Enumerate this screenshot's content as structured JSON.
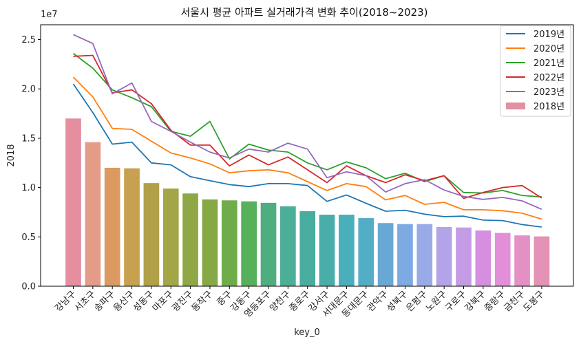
{
  "chart_data": {
    "type": "bar+line",
    "title": "서울시 평균 아파트 실거래가격 변화 추이(2018~2023)",
    "xlabel": "key_0",
    "ylabel": "2018",
    "y_multiplier_label": "1e7",
    "ylim": [
      0,
      2.65
    ],
    "yticks": [
      0.0,
      0.5,
      1.0,
      1.5,
      2.0,
      2.5
    ],
    "ytick_labels": [
      "0.0",
      "0.5",
      "1.0",
      "1.5",
      "2.0",
      "2.5"
    ],
    "grid": false,
    "legend_position": "top-right",
    "categories": [
      "강남구",
      "서초구",
      "송파구",
      "용산구",
      "성동구",
      "마포구",
      "광진구",
      "동작구",
      "중구",
      "강동구",
      "영등포구",
      "양천구",
      "종로구",
      "강서구",
      "서대문구",
      "동대문구",
      "관악구",
      "성북구",
      "은평구",
      "노원구",
      "구로구",
      "강북구",
      "중랑구",
      "금천구",
      "도봉구"
    ],
    "bar_series": {
      "name": "2018년",
      "values": [
        1.7,
        1.46,
        1.2,
        1.195,
        1.045,
        0.99,
        0.94,
        0.88,
        0.87,
        0.86,
        0.845,
        0.81,
        0.76,
        0.725,
        0.725,
        0.69,
        0.64,
        0.63,
        0.63,
        0.6,
        0.595,
        0.565,
        0.54,
        0.515,
        0.505
      ],
      "colors": [
        "#e48ea0",
        "#e49c88",
        "#dc9a60",
        "#c7a050",
        "#b0a048",
        "#a3a647",
        "#8fa845",
        "#86a945",
        "#6fad4a",
        "#56b15a",
        "#4eae80",
        "#4baf98",
        "#48ad9f",
        "#49aeaa",
        "#48afbb",
        "#53adc5",
        "#67a8d5",
        "#7eaae3",
        "#98abe8",
        "#b3a4e9",
        "#c49ce6",
        "#d68fe0",
        "#e28ed8",
        "#e490c5",
        "#e492b5"
      ]
    },
    "series": [
      {
        "name": "2019년",
        "color": "#1f77b4",
        "values": [
          2.05,
          1.76,
          1.44,
          1.46,
          1.25,
          1.23,
          1.11,
          1.07,
          1.03,
          1.01,
          1.04,
          1.04,
          1.02,
          0.86,
          0.925,
          0.84,
          0.76,
          0.77,
          0.73,
          0.705,
          0.71,
          0.67,
          0.665,
          0.625,
          0.6
        ]
      },
      {
        "name": "2020년",
        "color": "#ff7f0e",
        "values": [
          2.12,
          1.92,
          1.6,
          1.59,
          1.47,
          1.35,
          1.3,
          1.24,
          1.15,
          1.17,
          1.18,
          1.15,
          1.06,
          0.97,
          1.04,
          1.01,
          0.875,
          0.92,
          0.83,
          0.85,
          0.775,
          0.775,
          0.765,
          0.74,
          0.68
        ]
      },
      {
        "name": "2021년",
        "color": "#2ca02c",
        "values": [
          2.36,
          2.21,
          1.99,
          1.91,
          1.82,
          1.57,
          1.52,
          1.67,
          1.29,
          1.44,
          1.38,
          1.36,
          1.25,
          1.18,
          1.26,
          1.2,
          1.09,
          1.145,
          1.06,
          1.12,
          0.95,
          0.945,
          0.97,
          0.92,
          0.905
        ]
      },
      {
        "name": "2022년",
        "color": "#d62728",
        "values": [
          2.33,
          2.34,
          1.96,
          1.99,
          1.85,
          1.58,
          1.43,
          1.43,
          1.22,
          1.33,
          1.23,
          1.31,
          1.18,
          1.05,
          1.22,
          1.12,
          1.05,
          1.13,
          1.07,
          1.12,
          0.89,
          0.95,
          1.0,
          1.02,
          0.895
        ]
      },
      {
        "name": "2023년",
        "color": "#9467bd",
        "values": [
          2.55,
          2.46,
          1.95,
          2.06,
          1.67,
          1.57,
          1.46,
          1.36,
          1.3,
          1.39,
          1.36,
          1.45,
          1.39,
          1.1,
          1.16,
          1.12,
          0.955,
          1.04,
          1.08,
          0.975,
          0.91,
          0.88,
          0.9,
          0.865,
          0.78
        ]
      }
    ]
  }
}
